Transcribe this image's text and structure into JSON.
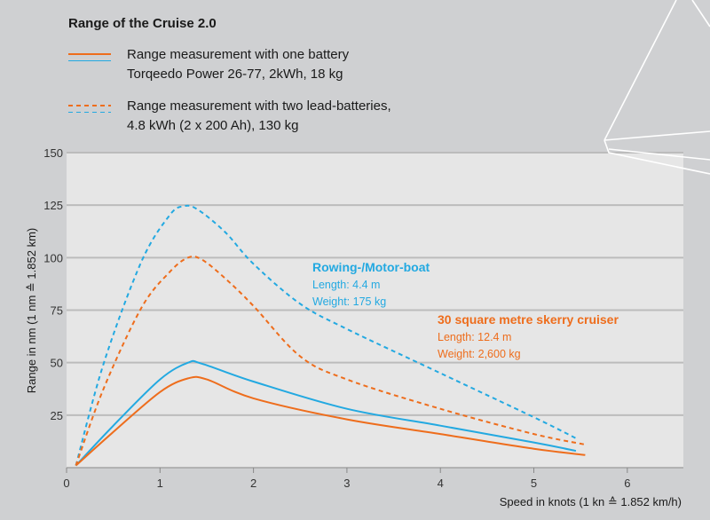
{
  "legend": {
    "title": "Range of the Cruise 2.0",
    "solid_line1": "Range measurement with one battery",
    "solid_line2": "Torqeedo Power 26-77, 2kWh, 18 kg",
    "dashed_line1": "Range measurement with two lead-batteries,",
    "dashed_line2": "4.8 kWh (2 x 200 Ah), 130 kg"
  },
  "colors": {
    "orange": "#ee6d1c",
    "blue": "#23a9e1",
    "plot_bg": "#e6e6e6",
    "page_bg": "#cfd0d2"
  },
  "annotations": {
    "boat1_title": "Rowing-/Motor-boat",
    "boat1_length": "Length: 4.4 m",
    "boat1_weight": "Weight: 175 kg",
    "boat2_title": "30 square metre skerry cruiser",
    "boat2_length": "Length: 12.4 m",
    "boat2_weight": "Weight: 2,600 kg"
  },
  "chart_data": {
    "type": "line",
    "title": "Range of the Cruise 2.0",
    "xlabel": "Speed in knots (1 kn ≙ 1.852 km/h)",
    "ylabel": "Range in nm (1 nm ≙ 1.852 km)",
    "xlim": [
      0,
      6.6
    ],
    "ylim": [
      0,
      150
    ],
    "x_ticks": [
      "0",
      "1",
      "2",
      "3",
      "4",
      "5",
      "6"
    ],
    "y_ticks": [
      "25",
      "50",
      "75",
      "100",
      "125",
      "150"
    ],
    "grid": "horizontal",
    "series": [
      {
        "name": "Rowing-/Motor-boat, one battery",
        "color": "blue",
        "style": "solid",
        "x": [
          0.1,
          0.5,
          1.0,
          1.3,
          1.45,
          2.0,
          3.0,
          4.0,
          5.0,
          5.45
        ],
        "y": [
          1,
          20,
          42,
          50,
          49.5,
          41,
          28,
          20,
          12,
          8
        ]
      },
      {
        "name": "30 square metre skerry cruiser, one battery",
        "color": "orange",
        "style": "solid",
        "x": [
          0.1,
          0.5,
          1.0,
          1.3,
          1.5,
          2.0,
          3.0,
          4.0,
          5.0,
          5.55
        ],
        "y": [
          1,
          17,
          36,
          42.5,
          42,
          33,
          23,
          16,
          9,
          6
        ]
      },
      {
        "name": "Rowing-/Motor-boat, two lead-batteries",
        "color": "blue",
        "style": "dashed",
        "x": [
          0.1,
          0.4,
          0.8,
          1.1,
          1.25,
          1.4,
          1.7,
          2.0,
          2.5,
          3.0,
          4.0,
          5.0,
          5.45
        ],
        "y": [
          1,
          50,
          98,
          120,
          124.5,
          123,
          112,
          97,
          78,
          66,
          45,
          24,
          14
        ]
      },
      {
        "name": "30 square metre skerry cruiser, two lead-batteries",
        "color": "orange",
        "style": "dashed",
        "x": [
          0.1,
          0.4,
          0.8,
          1.1,
          1.3,
          1.45,
          1.7,
          2.0,
          2.5,
          3.0,
          4.0,
          5.0,
          5.55
        ],
        "y": [
          1,
          38,
          76,
          93,
          100,
          99,
          90,
          77,
          53,
          42,
          28,
          16,
          11
        ]
      }
    ]
  }
}
